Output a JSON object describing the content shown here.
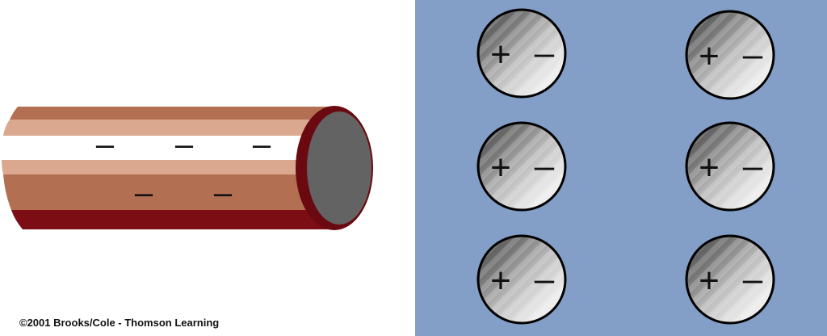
{
  "colors": {
    "background": "#ffffff",
    "panel": "#839fc7",
    "rod_light_band": "#d9a88f",
    "rod_mid_band": "#b36f52",
    "rod_dark_band": "#7d0d14",
    "rod_highlight": "#ffffff",
    "rod_end_face": "#636363",
    "rod_end_rim": "#6a0a10",
    "charge_mark": "#111111"
  },
  "rod": {
    "icon": "charged-rod-icon",
    "charges_top": [
      "–",
      "–",
      "–"
    ],
    "charges_bottom": [
      "–",
      "–"
    ]
  },
  "insulator": {
    "molecules": [
      {
        "plus": "+",
        "minus": "–"
      },
      {
        "plus": "+",
        "minus": "–"
      },
      {
        "plus": "+",
        "minus": "–"
      },
      {
        "plus": "+",
        "minus": "–"
      },
      {
        "plus": "+",
        "minus": "–"
      },
      {
        "plus": "+",
        "minus": "–"
      }
    ]
  },
  "copyright": "©2001 Brooks/Cole - Thomson Learning"
}
